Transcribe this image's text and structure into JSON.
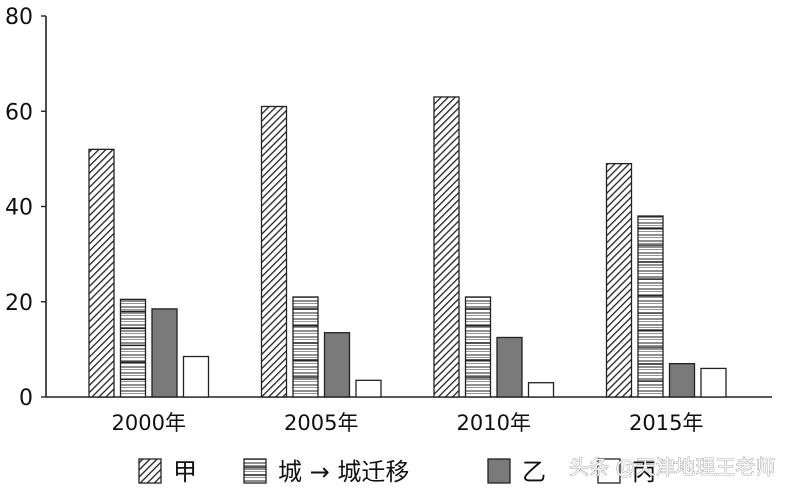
{
  "chart_data": {
    "type": "bar",
    "categories": [
      "2000年",
      "2005年",
      "2010年",
      "2015年"
    ],
    "series": [
      {
        "name": "甲",
        "values": [
          52,
          61,
          63,
          49
        ],
        "pattern": "diagonal"
      },
      {
        "name": "城 → 城迁移",
        "values": [
          20.5,
          21,
          21,
          38
        ],
        "pattern": "horizontal"
      },
      {
        "name": "乙",
        "values": [
          18.5,
          13.5,
          12.5,
          7
        ],
        "pattern": "solid-gray"
      },
      {
        "name": "丙",
        "values": [
          8.5,
          3.5,
          3,
          6
        ],
        "pattern": "white"
      }
    ],
    "yticks": [
      "0",
      "20",
      "40",
      "60",
      "80"
    ],
    "ylim": [
      0,
      80
    ],
    "grid": false,
    "legend_position": "bottom",
    "colors": {
      "solid": "#7a7a7a",
      "stroke": "#222222",
      "background": "#ffffff"
    }
  },
  "watermark": "头条 @天津地理王老师"
}
